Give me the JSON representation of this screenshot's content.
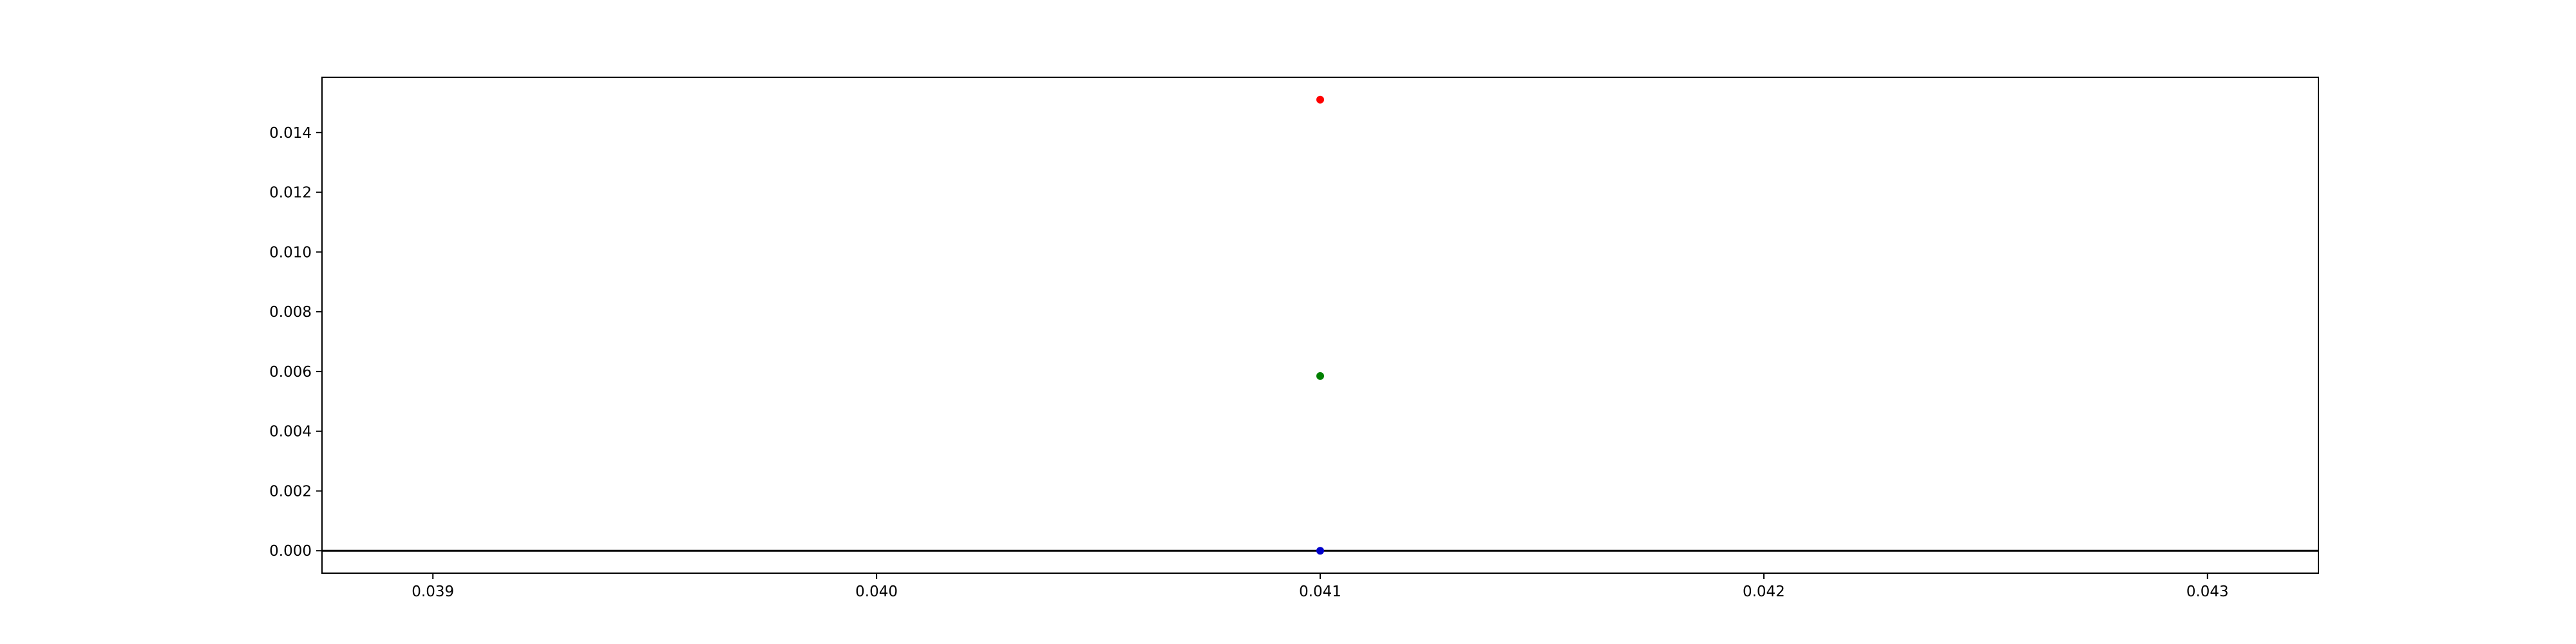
{
  "chart_data": {
    "type": "scatter",
    "title": "",
    "xlabel": "",
    "ylabel": "",
    "xlim": [
      0.03875,
      0.04325
    ],
    "ylim": [
      -0.00075,
      0.01585
    ],
    "x_ticks": [
      "0.039",
      "0.040",
      "0.041",
      "0.042",
      "0.043"
    ],
    "x_tick_values": [
      0.039,
      0.04,
      0.041,
      0.042,
      0.043
    ],
    "y_ticks": [
      "0.000",
      "0.002",
      "0.004",
      "0.006",
      "0.008",
      "0.010",
      "0.012",
      "0.014"
    ],
    "y_tick_values": [
      0.0,
      0.002,
      0.004,
      0.006,
      0.008,
      0.01,
      0.012,
      0.014
    ],
    "grid": false,
    "reference_line_y": 0.0,
    "points": [
      {
        "x": 0.041,
        "y": 0.0151,
        "color": "#ff0000"
      },
      {
        "x": 0.041,
        "y": 0.00585,
        "color": "#008000"
      },
      {
        "x": 0.041,
        "y": 0.0,
        "color": "#0000cc"
      }
    ]
  }
}
